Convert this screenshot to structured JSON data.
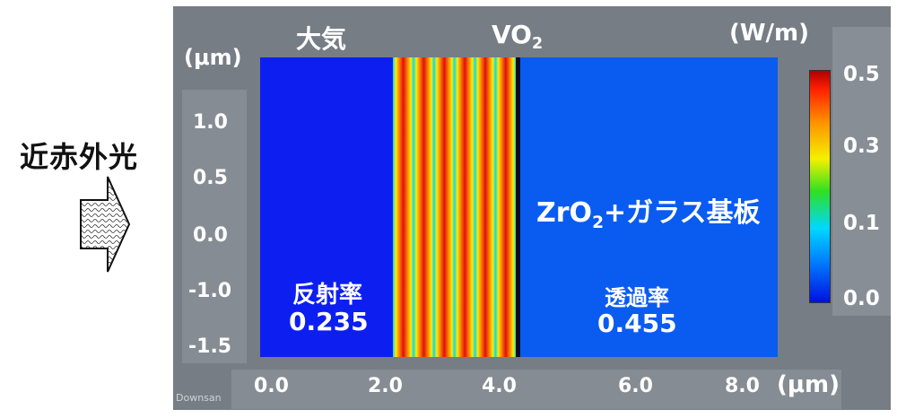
{
  "incident_label": "近赤外光",
  "top_labels": {
    "air": "大気",
    "vo2": "VO",
    "vo2_sub": "2",
    "unit": "(W/m)"
  },
  "left_unit": "(μm)",
  "y_ticks": [
    "1.0",
    "0.5",
    "0.0",
    "-1.0",
    "-1.5"
  ],
  "x_ticks": [
    "0.0",
    "2.0",
    "4.0",
    "6.0",
    "8.0"
  ],
  "x_unit": "(μm)",
  "colorbar_ticks": [
    "0.5",
    "0.3",
    "0.1",
    "0.0"
  ],
  "substrate_label": {
    "pre": "ZrO",
    "sub": "2",
    "post": "+ガラス基板"
  },
  "reflectance": {
    "label": "反射率",
    "value": "0.235"
  },
  "transmittance": {
    "label": "透過率",
    "value": "0.455"
  },
  "watermark": "Downsan",
  "colors": {
    "panel_gray": "#767d85",
    "field_blue": "#0d1ff0",
    "substrate_blue": "#0a5cf0",
    "stripe_red": "#e01010",
    "stripe_orange": "#ff9000",
    "stripe_yellow": "#f5f000",
    "stripe_cyan": "#00d8ff"
  }
}
